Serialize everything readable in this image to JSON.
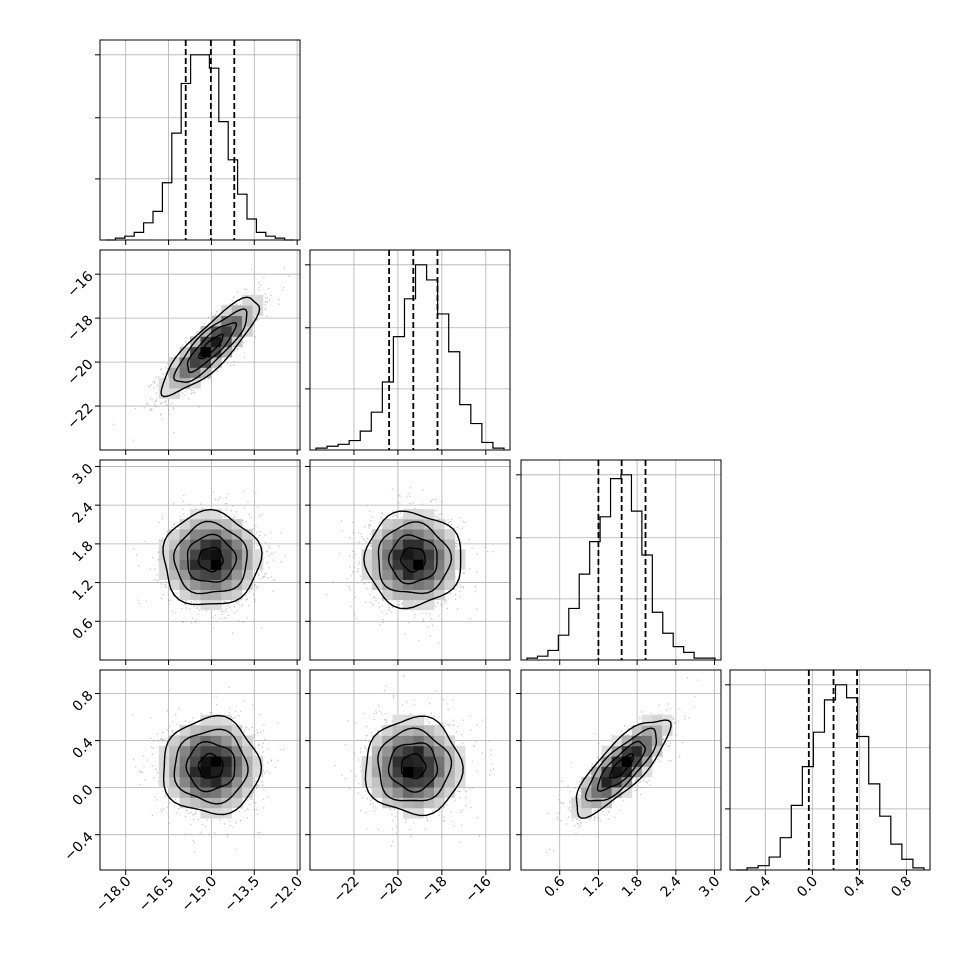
{
  "chart_data": {
    "type": "corner",
    "params": [
      {
        "lo": -18.9,
        "hi": -11.9,
        "ticks": [
          -18.0,
          -16.5,
          -15.0,
          -13.5,
          -12.0
        ],
        "tick_labels": [
          "−18.0",
          "−16.5",
          "−15.0",
          "−13.5",
          "−12.0"
        ],
        "q16": -15.9,
        "q50": -15.02,
        "q84": -14.2
      },
      {
        "lo": -24.0,
        "hi": -14.9,
        "ticks": [
          -22,
          -20,
          -18,
          -16
        ],
        "tick_labels": [
          "−22",
          "−20",
          "−18",
          "−16"
        ],
        "q16": -20.4,
        "q50": -19.3,
        "q84": -18.2
      },
      {
        "lo": 0.0,
        "hi": 3.1,
        "ticks": [
          0.6,
          1.2,
          1.8,
          2.4,
          3.0
        ],
        "tick_labels": [
          "0.6",
          "1.2",
          "1.8",
          "2.4",
          "3.0"
        ],
        "q16": 1.2,
        "q50": 1.56,
        "q84": 1.93
      },
      {
        "lo": -0.7,
        "hi": 1.0,
        "ticks": [
          -0.4,
          0.0,
          0.4,
          0.8
        ],
        "tick_labels": [
          "−0.4",
          "0.0",
          "0.4",
          "0.8"
        ],
        "q16": -0.03,
        "q50": 0.18,
        "q84": 0.38
      }
    ],
    "histograms": [
      [
        0,
        1,
        2,
        4,
        9,
        15,
        30,
        56,
        82,
        97,
        97,
        90,
        62,
        42,
        24,
        11,
        4,
        2,
        1,
        0
      ],
      [
        1,
        2,
        3,
        5,
        10,
        20,
        36,
        60,
        80,
        98,
        90,
        72,
        52,
        24,
        14,
        4,
        1
      ],
      [
        1,
        2,
        5,
        13,
        27,
        45,
        62,
        75,
        95,
        97,
        78,
        55,
        25,
        14,
        7,
        4,
        1,
        1
      ],
      [
        0,
        1,
        2,
        6,
        15,
        30,
        48,
        64,
        79,
        86,
        80,
        62,
        40,
        25,
        12,
        5,
        1
      ]
    ],
    "pairs": [
      {
        "row": 1,
        "col": 0,
        "rho": 0.85
      },
      {
        "row": 2,
        "col": 0,
        "rho": 0.0
      },
      {
        "row": 2,
        "col": 1,
        "rho": 0.0
      },
      {
        "row": 3,
        "col": 0,
        "rho": 0.0
      },
      {
        "row": 3,
        "col": 1,
        "rho": 0.0
      },
      {
        "row": 3,
        "col": 2,
        "rho": 0.8
      }
    ],
    "grid": true,
    "colors": {
      "ink": "#000000",
      "grid": "#b0b0b0",
      "points": "#7a7a7a",
      "frame": "#000000"
    }
  }
}
